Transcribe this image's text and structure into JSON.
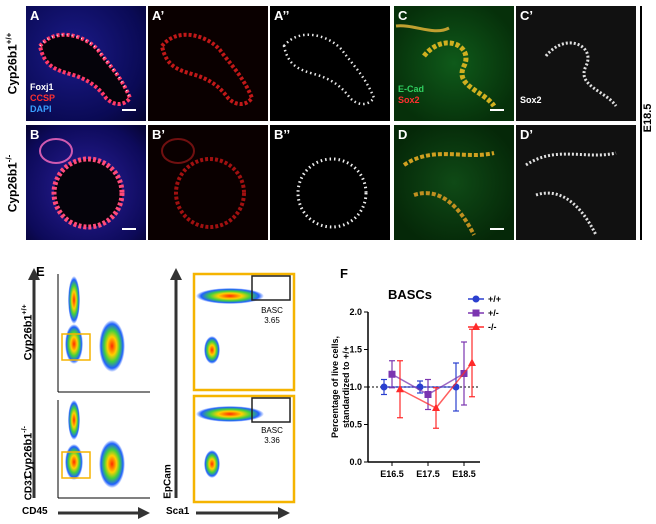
{
  "genotype_top": "Cyp26b1",
  "genotype_top_sup": "+/+",
  "genotype_bottom": "Cyp26b1",
  "genotype_bottom_sup": "-/-",
  "stage": "E18.5",
  "panels": {
    "A": "A",
    "A1": "A’",
    "A2": "A’’",
    "B": "B",
    "B1": "B’",
    "B2": "B’’",
    "C": "C",
    "C1": "C’",
    "D": "D",
    "D1": "D’",
    "E": "E",
    "F": "F"
  },
  "stain_legend_a": [
    "Foxj1",
    "CCSP",
    "DAPI"
  ],
  "stain_colors_a": [
    "#ffffff",
    "#ff3030",
    "#3aa0ff"
  ],
  "stain_legend_c": [
    "E-Cad",
    "Sox2"
  ],
  "stain_colors_c": [
    "#30d060",
    "#ff3030"
  ],
  "stain_c1": "Sox2",
  "flow": {
    "x_label_left": "CD45",
    "y_label_left": "CD31",
    "x_label_right": "Sca1",
    "y_label_right": "EpCam",
    "gate_name": "BASC",
    "gate_value_top": "3.65",
    "gate_value_bottom": "3.36",
    "gate_color": "#f5b400"
  },
  "chart_data": {
    "type": "line",
    "title": "BASCs",
    "ylabel": "Percentage of live cells, standardized to +/+",
    "categories": [
      "E16.5",
      "E17.5",
      "E18.5"
    ],
    "ylim": [
      0.0,
      2.0
    ],
    "yticks": [
      "0.0",
      "0.5",
      "1.0",
      "1.5",
      "2.0"
    ],
    "reference_line": 1.0,
    "legend_position": "top-right",
    "series": [
      {
        "name": "+/+",
        "color": "#2a3fcf",
        "marker": "circle",
        "values": [
          1.0,
          1.0,
          1.0
        ],
        "err": [
          0.1,
          0.08,
          0.32
        ]
      },
      {
        "name": "+/-",
        "color": "#7b35b0",
        "marker": "square",
        "values": [
          1.17,
          0.9,
          1.18
        ],
        "err": [
          0.18,
          0.2,
          0.42
        ]
      },
      {
        "name": "-/-",
        "color": "#ff2a2a",
        "marker": "triangle",
        "values": [
          0.97,
          0.72,
          1.32
        ],
        "err": [
          0.38,
          0.27,
          0.45
        ]
      }
    ]
  }
}
